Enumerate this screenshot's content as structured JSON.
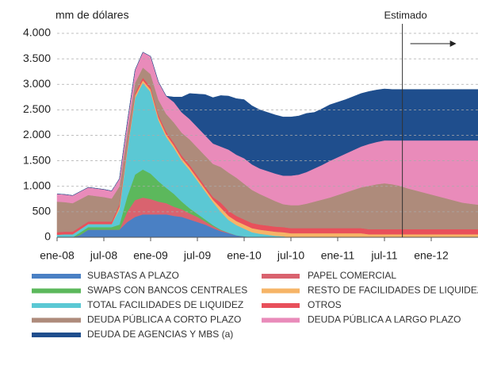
{
  "chart_data": {
    "type": "stacked_area",
    "y_label": "mm de dólares",
    "annotation": {
      "text": "Estimado",
      "x": 44.3
    },
    "categories": [
      "ene-08",
      null,
      null,
      null,
      null,
      null,
      "jul-08",
      null,
      null,
      null,
      null,
      null,
      "ene-09",
      null,
      null,
      null,
      null,
      null,
      "jul-09",
      null,
      null,
      null,
      null,
      null,
      "ene-10",
      null,
      null,
      null,
      null,
      null,
      "jul-10",
      null,
      null,
      null,
      null,
      null,
      "ene-11",
      null,
      null,
      null,
      null,
      null,
      "jul-11",
      null,
      null,
      null,
      null,
      null,
      "ene-12",
      null,
      null,
      null,
      null,
      null,
      null
    ],
    "ylim": [
      0,
      4000
    ],
    "yticks": [
      0,
      500,
      {
        "value": 1000,
        "label": "1.000"
      },
      {
        "value": 1500,
        "label": "1.500"
      },
      {
        "value": 2000,
        "label": "2.000"
      },
      {
        "value": 2500,
        "label": "2.500"
      },
      {
        "value": 3000,
        "label": "3.000"
      },
      {
        "value": 3500,
        "label": "3.500"
      },
      {
        "value": 4000,
        "label": "4.000"
      }
    ],
    "grid": true,
    "series": [
      {
        "name": "SUBASTAS A PLAZO",
        "color": "#4a80c4",
        "values": [
          0,
          0,
          0,
          50,
          150,
          150,
          150,
          150,
          150,
          300,
          400,
          450,
          450,
          450,
          450,
          420,
          400,
          350,
          300,
          250,
          180,
          120,
          80,
          40,
          20,
          0,
          0,
          0,
          0,
          0,
          0,
          0,
          0,
          0,
          0,
          0,
          0,
          0,
          0,
          0,
          0,
          0,
          0,
          0,
          0,
          0,
          0,
          0,
          0,
          0,
          0,
          0,
          0,
          0,
          0
        ]
      },
      {
        "name": "PAPEL COMERCIAL",
        "color": "#d9636f",
        "values": [
          0,
          0,
          0,
          0,
          0,
          0,
          0,
          0,
          0,
          200,
          330,
          330,
          300,
          250,
          220,
          180,
          150,
          120,
          100,
          60,
          40,
          20,
          10,
          0,
          0,
          0,
          0,
          0,
          0,
          0,
          0,
          0,
          0,
          0,
          0,
          0,
          0,
          0,
          0,
          0,
          0,
          0,
          0,
          0,
          0,
          0,
          0,
          0,
          0,
          0,
          0,
          0,
          0,
          0,
          0
        ]
      },
      {
        "name": "SWAPS CON BANCOS CENTRALES",
        "color": "#5cb85c",
        "values": [
          0,
          0,
          0,
          50,
          50,
          50,
          50,
          50,
          100,
          300,
          500,
          550,
          500,
          400,
          300,
          250,
          150,
          100,
          60,
          40,
          20,
          10,
          0,
          0,
          0,
          0,
          0,
          0,
          0,
          0,
          0,
          0,
          0,
          0,
          0,
          0,
          0,
          0,
          0,
          0,
          0,
          0,
          0,
          0,
          0,
          0,
          0,
          0,
          0,
          0,
          0,
          0,
          0,
          0,
          0
        ]
      },
      {
        "name": "TOTAL FACILIDADES DE LIQUIDEZ",
        "color": "#5bc8d4",
        "values": [
          50,
          60,
          60,
          60,
          60,
          60,
          60,
          60,
          300,
          900,
          1500,
          1700,
          1600,
          1200,
          1000,
          900,
          800,
          750,
          650,
          550,
          450,
          350,
          250,
          200,
          150,
          100,
          70,
          50,
          30,
          20,
          0,
          0,
          0,
          0,
          0,
          0,
          0,
          0,
          0,
          0,
          0,
          0,
          0,
          0,
          0,
          0,
          0,
          0,
          0,
          0,
          0,
          0,
          0,
          0,
          0
        ]
      },
      {
        "name": "RESTO DE FACILIDADES DE LIQUIDEZ",
        "color": "#f6b467",
        "values": [
          0,
          0,
          0,
          0,
          0,
          0,
          0,
          0,
          50,
          50,
          50,
          50,
          50,
          50,
          50,
          50,
          50,
          50,
          50,
          50,
          50,
          80,
          80,
          80,
          80,
          80,
          80,
          80,
          80,
          80,
          80,
          80,
          80,
          80,
          80,
          80,
          80,
          80,
          80,
          80,
          60,
          60,
          60,
          60,
          60,
          60,
          60,
          60,
          60,
          60,
          60,
          60,
          60,
          60,
          60
        ]
      },
      {
        "name": "OTROS",
        "color": "#e8505b",
        "values": [
          50,
          50,
          50,
          50,
          50,
          50,
          50,
          50,
          50,
          50,
          50,
          50,
          50,
          50,
          50,
          50,
          50,
          50,
          50,
          50,
          50,
          100,
          100,
          100,
          100,
          100,
          100,
          100,
          100,
          100,
          100,
          100,
          100,
          100,
          100,
          100,
          100,
          100,
          100,
          100,
          100,
          100,
          100,
          100,
          100,
          100,
          100,
          100,
          100,
          100,
          100,
          100,
          100,
          100,
          100
        ]
      },
      {
        "name": "DEUDA PÚBLICA A CORTO PLAZO",
        "color": "#ae8b7b",
        "values": [
          600,
          580,
          560,
          540,
          520,
          500,
          480,
          450,
          350,
          250,
          200,
          200,
          250,
          300,
          350,
          400,
          450,
          500,
          550,
          600,
          650,
          700,
          750,
          750,
          700,
          650,
          600,
          550,
          500,
          450,
          450,
          450,
          480,
          520,
          560,
          600,
          650,
          700,
          750,
          800,
          850,
          880,
          900,
          880,
          850,
          800,
          760,
          720,
          680,
          640,
          600,
          560,
          520,
          500,
          480
        ]
      },
      {
        "name": "DEUDA PÚBLICA A LARGO PLAZO",
        "color": "#e98bba",
        "values": [
          150,
          150,
          150,
          150,
          150,
          150,
          150,
          150,
          150,
          200,
          250,
          300,
          350,
          350,
          350,
          400,
          400,
          400,
          400,
          400,
          400,
          400,
          450,
          450,
          500,
          500,
          500,
          520,
          540,
          560,
          580,
          600,
          620,
          650,
          680,
          720,
          740,
          760,
          780,
          800,
          820,
          830,
          840,
          860,
          890,
          940,
          980,
          1020,
          1060,
          1100,
          1140,
          1180,
          1220,
          1240,
          1260
        ]
      },
      {
        "name": "DEUDA DE AGENCIAS Y MBS (a)",
        "color": "#1f4e8d",
        "values": [
          0,
          0,
          0,
          0,
          0,
          0,
          0,
          0,
          0,
          0,
          0,
          0,
          0,
          0,
          0,
          100,
          300,
          500,
          650,
          800,
          900,
          1000,
          1050,
          1100,
          1150,
          1150,
          1150,
          1150,
          1150,
          1150,
          1150,
          1150,
          1150,
          1100,
          1100,
          1100,
          1080,
          1060,
          1050,
          1040,
          1030,
          1020,
          1010,
          1000,
          1000,
          1000,
          1000,
          1000,
          1000,
          1000,
          1000,
          1000,
          1000,
          1000,
          1000
        ]
      }
    ]
  }
}
